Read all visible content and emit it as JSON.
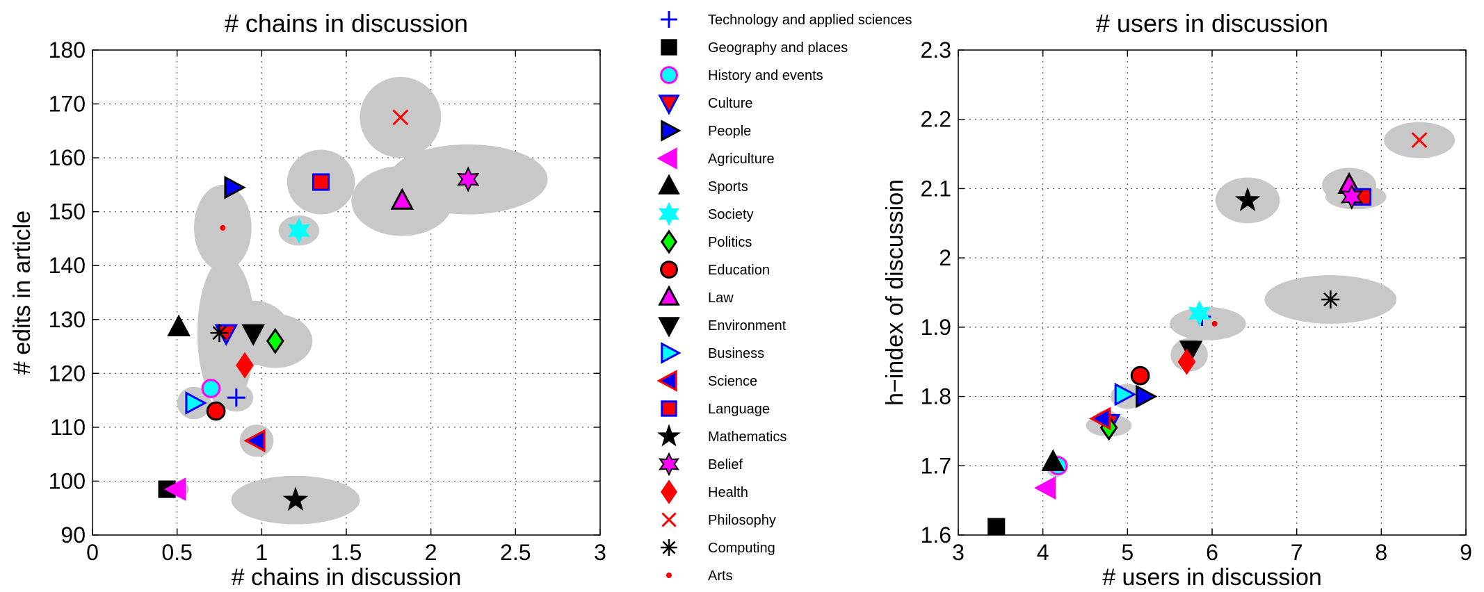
{
  "chart_data": [
    {
      "type": "scatter",
      "title": "# chains in discussion",
      "xlabel": "# chains in discussion",
      "ylabel": "# edits in article",
      "xlim": [
        0,
        3
      ],
      "ylim": [
        90,
        180
      ],
      "xticks": [
        "0",
        "0.5",
        "1",
        "1.5",
        "2",
        "2.5",
        "3"
      ],
      "yticks": [
        "90",
        "100",
        "110",
        "120",
        "130",
        "140",
        "150",
        "160",
        "170",
        "180"
      ],
      "grid": true,
      "points": [
        {
          "category": "Technology and applied sciences",
          "x": 0.85,
          "y": 115.5
        },
        {
          "category": "Geography and places",
          "x": 0.44,
          "y": 98.5
        },
        {
          "category": "History and events",
          "x": 0.7,
          "y": 117.2
        },
        {
          "category": "Culture",
          "x": 0.79,
          "y": 127.5
        },
        {
          "category": "People",
          "x": 0.83,
          "y": 154.5
        },
        {
          "category": "Agriculture",
          "x": 0.5,
          "y": 98.5
        },
        {
          "category": "Sports",
          "x": 0.51,
          "y": 128.5
        },
        {
          "category": "Society",
          "x": 1.22,
          "y": 146.5
        },
        {
          "category": "Politics",
          "x": 1.08,
          "y": 126.0
        },
        {
          "category": "Education",
          "x": 0.73,
          "y": 113.0
        },
        {
          "category": "Law",
          "x": 1.83,
          "y": 152.0
        },
        {
          "category": "Environment",
          "x": 0.95,
          "y": 127.5
        },
        {
          "category": "Business",
          "x": 0.6,
          "y": 114.5
        },
        {
          "category": "Science",
          "x": 0.97,
          "y": 107.5
        },
        {
          "category": "Language",
          "x": 1.35,
          "y": 155.5
        },
        {
          "category": "Mathematics",
          "x": 1.2,
          "y": 96.5
        },
        {
          "category": "Belief",
          "x": 2.22,
          "y": 156.0
        },
        {
          "category": "Health",
          "x": 0.9,
          "y": 121.5
        },
        {
          "category": "Philosophy",
          "x": 1.82,
          "y": 167.5
        },
        {
          "category": "Computing",
          "x": 0.75,
          "y": 127.5
        },
        {
          "category": "Arts",
          "x": 0.77,
          "y": 147.0
        }
      ],
      "ellipses": [
        {
          "cx": 1.82,
          "cy": 167.5,
          "rx": 0.24,
          "ry": 7.5
        },
        {
          "cx": 2.22,
          "cy": 156.0,
          "rx": 0.47,
          "ry": 6.5
        },
        {
          "cx": 1.83,
          "cy": 152.0,
          "rx": 0.3,
          "ry": 6.5
        },
        {
          "cx": 1.35,
          "cy": 155.5,
          "rx": 0.2,
          "ry": 6.0
        },
        {
          "cx": 1.22,
          "cy": 146.5,
          "rx": 0.12,
          "ry": 2.8
        },
        {
          "cx": 0.77,
          "cy": 147.0,
          "rx": 0.17,
          "ry": 8.0
        },
        {
          "cx": 0.79,
          "cy": 127.5,
          "rx": 0.17,
          "ry": 14.0
        },
        {
          "cx": 0.95,
          "cy": 127.5,
          "rx": 0.22,
          "ry": 6.0
        },
        {
          "cx": 1.08,
          "cy": 126.0,
          "rx": 0.22,
          "ry": 5.0
        },
        {
          "cx": 0.85,
          "cy": 115.5,
          "rx": 0.1,
          "ry": 2.6
        },
        {
          "cx": 0.6,
          "cy": 114.5,
          "rx": 0.1,
          "ry": 3.0
        },
        {
          "cx": 0.97,
          "cy": 107.5,
          "rx": 0.1,
          "ry": 3.0
        },
        {
          "cx": 1.2,
          "cy": 96.5,
          "rx": 0.38,
          "ry": 4.5
        },
        {
          "cx": 0.5,
          "cy": 98.5,
          "rx": 0.07,
          "ry": 1.6
        }
      ]
    },
    {
      "type": "scatter",
      "title": "# users in discussion",
      "xlabel": "# users in discussion",
      "ylabel": "h−index of discussion",
      "xlim": [
        3,
        9
      ],
      "ylim": [
        1.6,
        2.3
      ],
      "xticks": [
        "3",
        "4",
        "5",
        "6",
        "7",
        "8",
        "9"
      ],
      "yticks": [
        "1.6",
        "1.7",
        "1.8",
        "1.9",
        "2",
        "2.1",
        "2.2",
        "2.3"
      ],
      "grid": true,
      "points": [
        {
          "category": "Technology and applied sciences",
          "x": 5.88,
          "y": 1.915
        },
        {
          "category": "Geography and places",
          "x": 3.45,
          "y": 1.612
        },
        {
          "category": "History and events",
          "x": 4.18,
          "y": 1.7
        },
        {
          "category": "Culture",
          "x": 4.78,
          "y": 1.762
        },
        {
          "category": "People",
          "x": 5.2,
          "y": 1.8
        },
        {
          "category": "Agriculture",
          "x": 4.05,
          "y": 1.668
        },
        {
          "category": "Sports",
          "x": 4.12,
          "y": 1.705
        },
        {
          "category": "Society",
          "x": 5.85,
          "y": 1.92
        },
        {
          "category": "Politics",
          "x": 4.78,
          "y": 1.755
        },
        {
          "category": "Education",
          "x": 5.15,
          "y": 1.83
        },
        {
          "category": "Law",
          "x": 7.62,
          "y": 2.105
        },
        {
          "category": "Environment",
          "x": 5.75,
          "y": 1.868
        },
        {
          "category": "Business",
          "x": 4.95,
          "y": 1.803
        },
        {
          "category": "Science",
          "x": 4.7,
          "y": 1.768
        },
        {
          "category": "Language",
          "x": 7.78,
          "y": 2.088
        },
        {
          "category": "Mathematics",
          "x": 6.42,
          "y": 2.083
        },
        {
          "category": "Belief",
          "x": 7.65,
          "y": 2.088
        },
        {
          "category": "Health",
          "x": 5.7,
          "y": 1.85
        },
        {
          "category": "Philosophy",
          "x": 8.45,
          "y": 2.17
        },
        {
          "category": "Computing",
          "x": 7.4,
          "y": 1.94
        },
        {
          "category": "Arts",
          "x": 6.03,
          "y": 1.905
        }
      ],
      "ellipses": [
        {
          "cx": 8.45,
          "cy": 2.17,
          "rx": 0.42,
          "ry": 0.026
        },
        {
          "cx": 7.62,
          "cy": 2.105,
          "rx": 0.32,
          "ry": 0.025
        },
        {
          "cx": 7.7,
          "cy": 2.088,
          "rx": 0.36,
          "ry": 0.018
        },
        {
          "cx": 6.42,
          "cy": 2.083,
          "rx": 0.38,
          "ry": 0.033
        },
        {
          "cx": 7.4,
          "cy": 1.94,
          "rx": 0.78,
          "ry": 0.035
        },
        {
          "cx": 5.95,
          "cy": 1.905,
          "rx": 0.45,
          "ry": 0.024
        },
        {
          "cx": 5.73,
          "cy": 1.86,
          "rx": 0.22,
          "ry": 0.024
        },
        {
          "cx": 5.0,
          "cy": 1.8,
          "rx": 0.2,
          "ry": 0.018
        },
        {
          "cx": 4.78,
          "cy": 1.758,
          "rx": 0.27,
          "ry": 0.016
        },
        {
          "cx": 4.75,
          "cy": 1.768,
          "rx": 0.14,
          "ry": 0.012
        },
        {
          "cx": 4.15,
          "cy": 1.7,
          "rx": 0.12,
          "ry": 0.016
        }
      ]
    }
  ],
  "legend": {
    "placement": "center",
    "entries": [
      {
        "label": "Technology and applied sciences",
        "marker": "plus",
        "color": "#0000ff",
        "edge": "#0000ff"
      },
      {
        "label": "Geography and places",
        "marker": "square",
        "color": "#000000",
        "edge": "#000000"
      },
      {
        "label": "History and events",
        "marker": "circle",
        "color": "#00ffff",
        "edge": "#ff00ff"
      },
      {
        "label": "Culture",
        "marker": "triangle-down",
        "color": "#ff0000",
        "edge": "#0000ff"
      },
      {
        "label": "People",
        "marker": "triangle-right",
        "color": "#0000ff",
        "edge": "#000000"
      },
      {
        "label": "Agriculture",
        "marker": "triangle-left",
        "color": "#ff00ff",
        "edge": "#ff00ff"
      },
      {
        "label": "Sports",
        "marker": "triangle-up",
        "color": "#000000",
        "edge": "#000000"
      },
      {
        "label": "Society",
        "marker": "hexagram",
        "color": "#00ffff",
        "edge": "#00ffff"
      },
      {
        "label": "Politics",
        "marker": "diamond",
        "color": "#00ff00",
        "edge": "#000000"
      },
      {
        "label": "Education",
        "marker": "circle",
        "color": "#ff0000",
        "edge": "#000000"
      },
      {
        "label": "Law",
        "marker": "triangle-up",
        "color": "#ff00ff",
        "edge": "#000000"
      },
      {
        "label": "Environment",
        "marker": "triangle-down",
        "color": "#000000",
        "edge": "#000000"
      },
      {
        "label": "Business",
        "marker": "triangle-right",
        "color": "#00ffff",
        "edge": "#0000ff"
      },
      {
        "label": "Science",
        "marker": "triangle-left",
        "color": "#0000ff",
        "edge": "#ff0000"
      },
      {
        "label": "Language",
        "marker": "square",
        "color": "#ff0000",
        "edge": "#0000ff"
      },
      {
        "label": "Mathematics",
        "marker": "pentagram",
        "color": "#000000",
        "edge": "#000000"
      },
      {
        "label": "Belief",
        "marker": "hexagram",
        "color": "#ff00ff",
        "edge": "#000000"
      },
      {
        "label": "Health",
        "marker": "diamond",
        "color": "#ff0000",
        "edge": "#ff0000"
      },
      {
        "label": "Philosophy",
        "marker": "x",
        "color": "#ff0000",
        "edge": "#ff0000"
      },
      {
        "label": "Computing",
        "marker": "asterisk",
        "color": "#000000",
        "edge": "#000000"
      },
      {
        "label": "Arts",
        "marker": "dot",
        "color": "#ff0000",
        "edge": "#ff0000"
      }
    ]
  },
  "colors": {
    "ellipse_fill": "#c8c8c8",
    "grid": "#555555",
    "axis": "#000000"
  }
}
